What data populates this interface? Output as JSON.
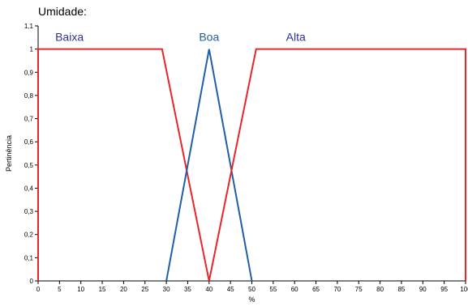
{
  "chart_data": {
    "type": "line",
    "title": "Umidade:",
    "xlabel": "%",
    "ylabel": "Pertinência",
    "xlim": [
      0,
      100
    ],
    "ylim": [
      0,
      1.1
    ],
    "x_ticks": [
      "0",
      "5",
      "10",
      "15",
      "20",
      "25",
      "30",
      "35",
      "40",
      "45",
      "50",
      "55",
      "60",
      "65",
      "70",
      "75",
      "80",
      "85",
      "90",
      "95",
      "100"
    ],
    "y_ticks": [
      "0",
      "0,1",
      "0,2",
      "0,3",
      "0,4",
      "0,5",
      "0,6",
      "0,7",
      "0,8",
      "0,9",
      "1",
      "1,1"
    ],
    "grid": false,
    "legend": "none",
    "series": [
      {
        "name": "Baixa",
        "color": "#e8262a",
        "points": [
          [
            0,
            0
          ],
          [
            0,
            1
          ],
          [
            29,
            1
          ],
          [
            40,
            0
          ]
        ]
      },
      {
        "name": "Boa",
        "color": "#1f5fa8",
        "points": [
          [
            30,
            0
          ],
          [
            40,
            1
          ],
          [
            50,
            0
          ]
        ]
      },
      {
        "name": "Alta",
        "color": "#e8262a",
        "points": [
          [
            40,
            0
          ],
          [
            51,
            1
          ],
          [
            100,
            1
          ],
          [
            100,
            0
          ]
        ]
      }
    ],
    "set_labels": [
      {
        "text": "Baixa",
        "x": 4,
        "y": 1.035,
        "color": "#2e3192"
      },
      {
        "text": "Boa",
        "x": 40,
        "y": 1.035,
        "color": "#1f5fa8"
      },
      {
        "text": "Alta",
        "x": 58,
        "y": 1.035,
        "color": "#2e3192"
      }
    ]
  }
}
